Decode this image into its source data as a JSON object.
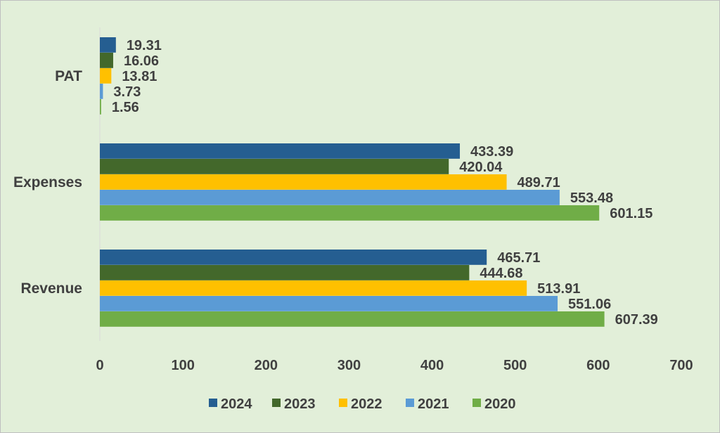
{
  "chart_data": {
    "type": "bar",
    "orientation": "horizontal",
    "categories": [
      "PAT",
      "Expenses",
      "Revenue"
    ],
    "series": [
      {
        "name": "2024",
        "color": "#255e91",
        "values": [
          19.31,
          433.39,
          465.71
        ]
      },
      {
        "name": "2023",
        "color": "#43682b",
        "values": [
          16.06,
          420.04,
          444.68
        ]
      },
      {
        "name": "2022",
        "color": "#ffc000",
        "values": [
          13.81,
          489.71,
          513.91
        ]
      },
      {
        "name": "2021",
        "color": "#5b9bd5",
        "values": [
          3.73,
          553.48,
          551.06
        ]
      },
      {
        "name": "2020",
        "color": "#70ad47",
        "values": [
          1.56,
          601.15,
          607.39
        ]
      }
    ],
    "data_labels": [
      [
        "19.31",
        "433.39",
        "465.71"
      ],
      [
        "16.06",
        "420.04",
        "444.68"
      ],
      [
        "13.81",
        "489.71",
        "513.91"
      ],
      [
        "3.73",
        "553.48",
        "551.06"
      ],
      [
        "1.56",
        "601.15",
        "607.39"
      ]
    ],
    "x_ticks": [
      "0",
      "100",
      "200",
      "300",
      "400",
      "500",
      "600",
      "700"
    ],
    "xlim": [
      0,
      700
    ],
    "title": "",
    "xlabel": "",
    "ylabel": "",
    "grid": false,
    "legend_position": "bottom",
    "background_color": "#e2efd9"
  }
}
